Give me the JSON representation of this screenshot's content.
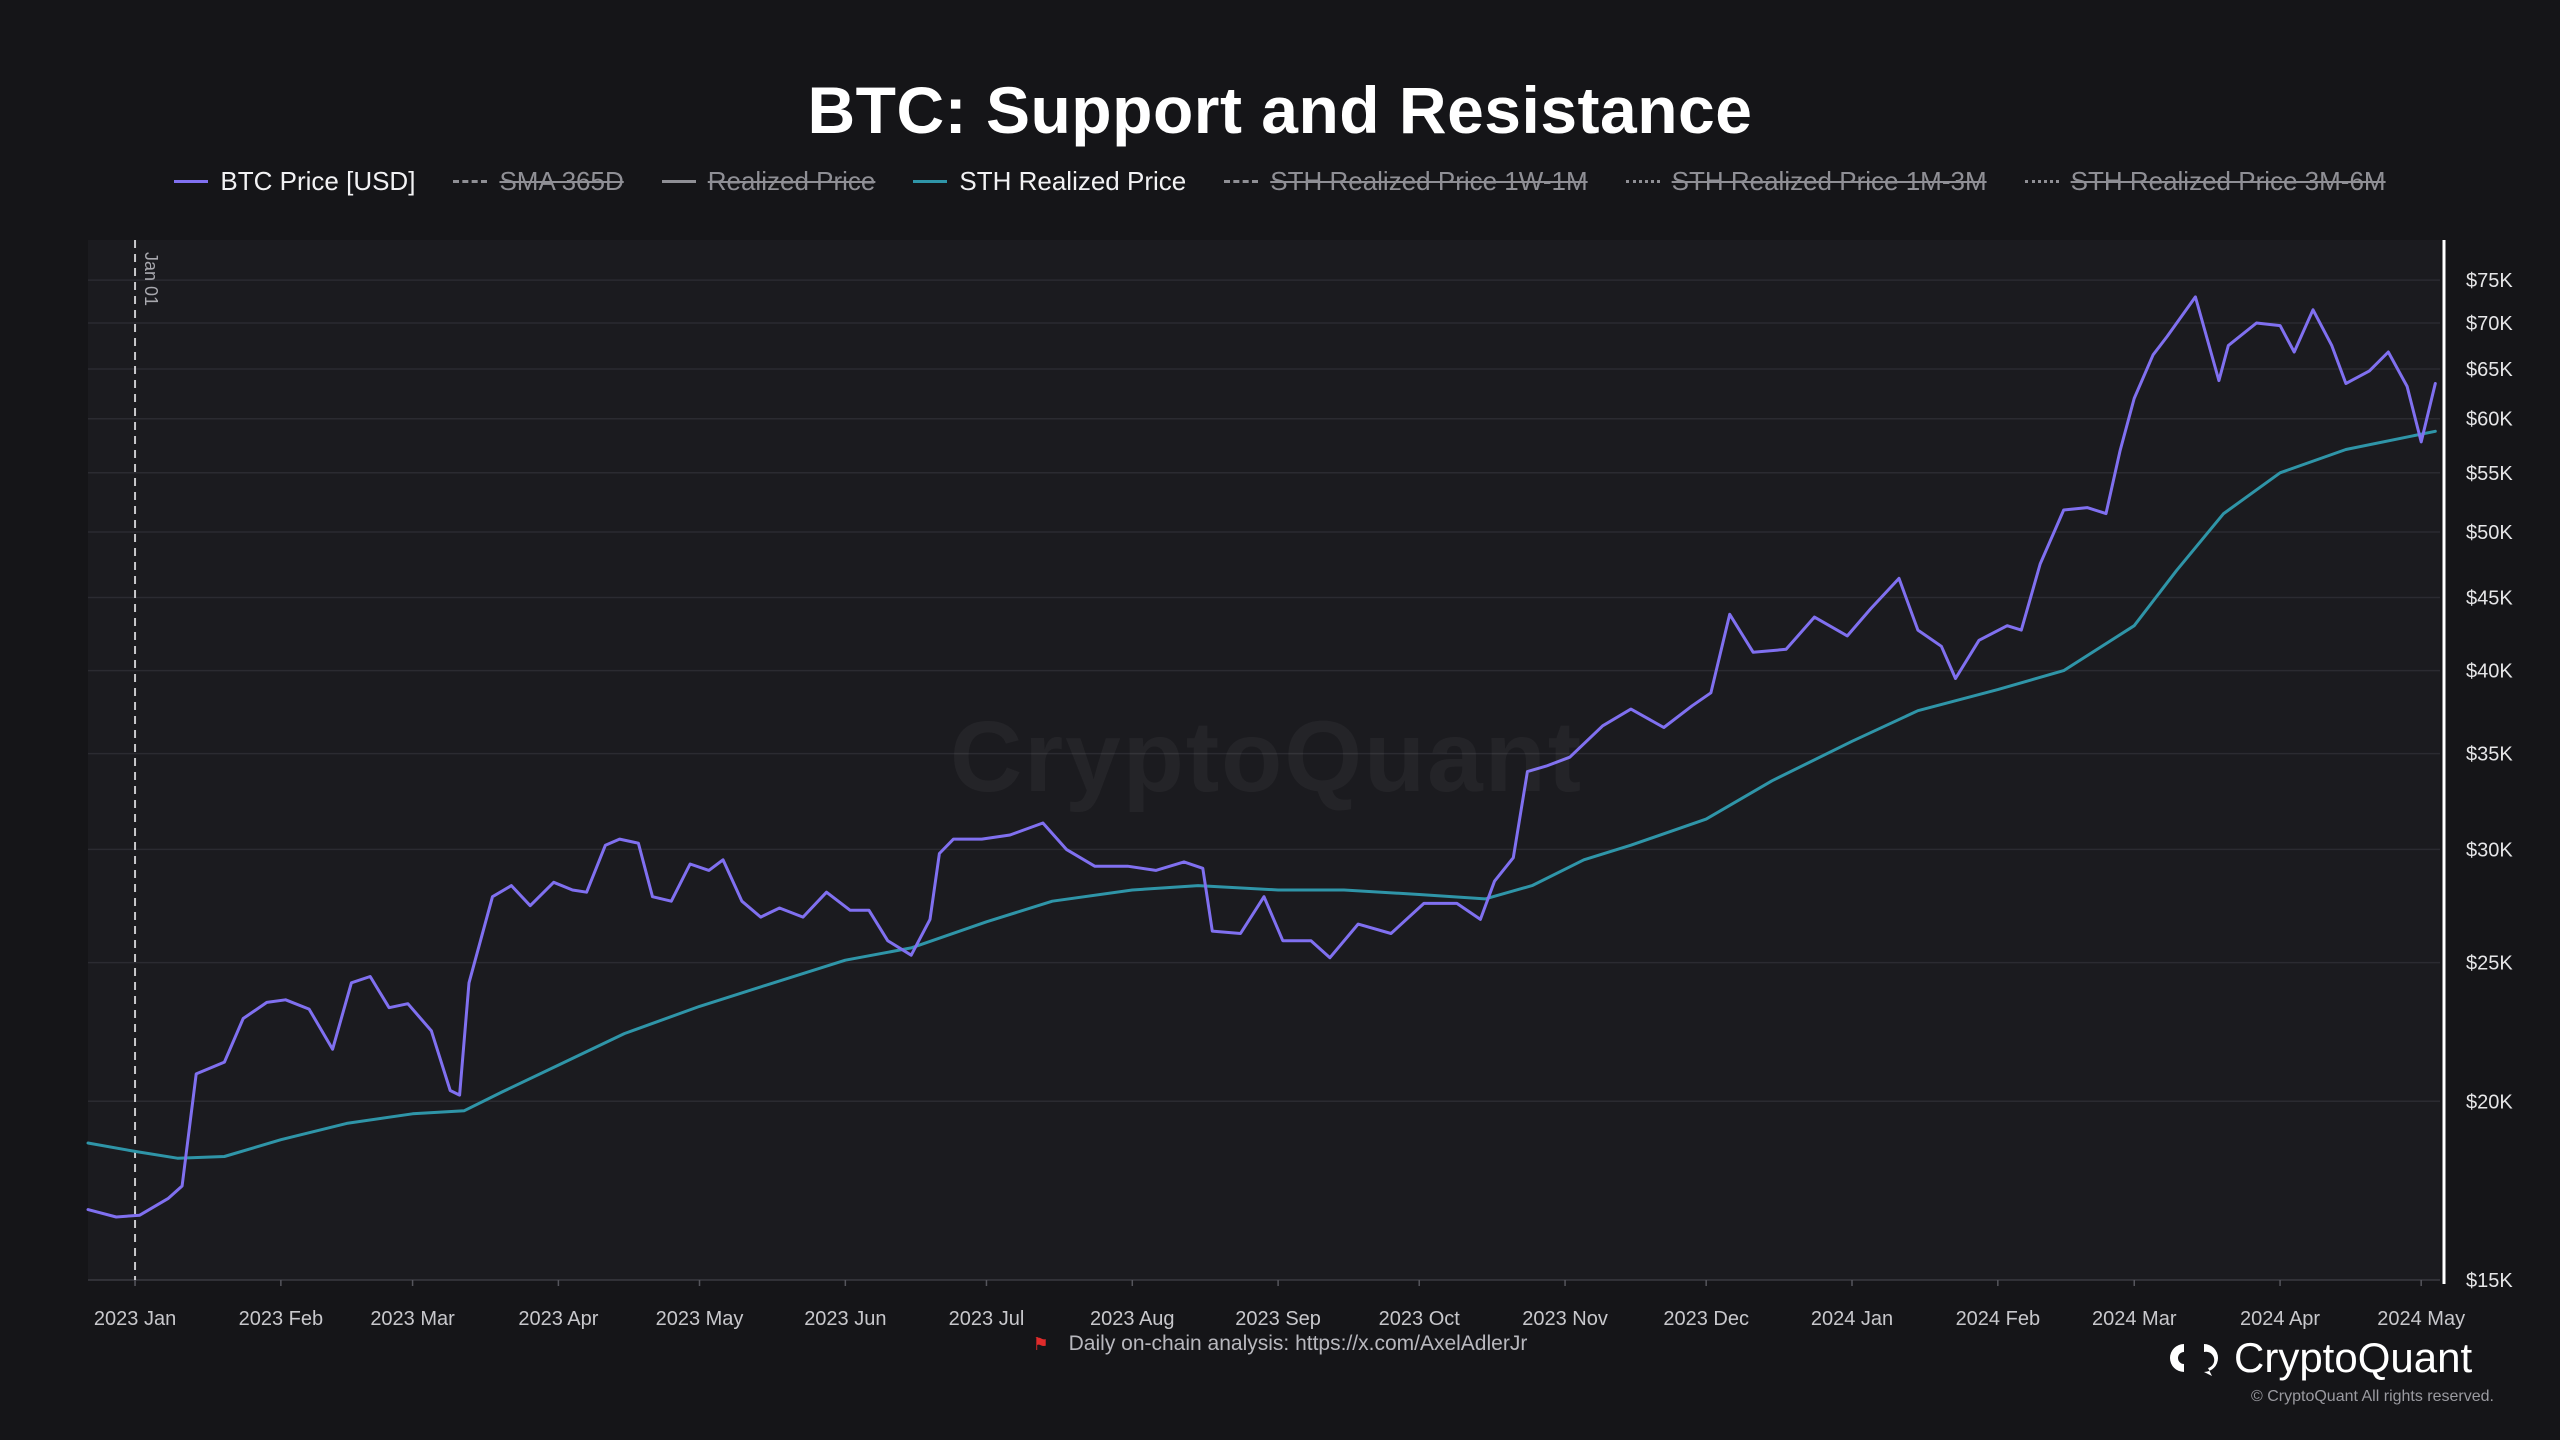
{
  "chart_data": {
    "type": "line",
    "title": "BTC: Support and Resistance",
    "y_scale": "log",
    "ylim": [
      15000,
      80000
    ],
    "y_ticks": [
      {
        "value": 15000,
        "label": "$15K"
      },
      {
        "value": 20000,
        "label": "$20K"
      },
      {
        "value": 25000,
        "label": "$25K"
      },
      {
        "value": 30000,
        "label": "$30K"
      },
      {
        "value": 35000,
        "label": "$35K"
      },
      {
        "value": 40000,
        "label": "$40K"
      },
      {
        "value": 45000,
        "label": "$45K"
      },
      {
        "value": 50000,
        "label": "$50K"
      },
      {
        "value": 55000,
        "label": "$55K"
      },
      {
        "value": 60000,
        "label": "$60K"
      },
      {
        "value": 65000,
        "label": "$65K"
      },
      {
        "value": 70000,
        "label": "$70K"
      },
      {
        "value": 75000,
        "label": "$75K"
      }
    ],
    "x_range": [
      "2022-12-22",
      "2024-05-05"
    ],
    "x_ticks": [
      {
        "date": "2023-01-01",
        "label": "2023 Jan"
      },
      {
        "date": "2023-02-01",
        "label": "2023 Feb"
      },
      {
        "date": "2023-03-01",
        "label": "2023 Mar"
      },
      {
        "date": "2023-04-01",
        "label": "2023 Apr"
      },
      {
        "date": "2023-05-01",
        "label": "2023 May"
      },
      {
        "date": "2023-06-01",
        "label": "2023 Jun"
      },
      {
        "date": "2023-07-01",
        "label": "2023 Jul"
      },
      {
        "date": "2023-08-01",
        "label": "2023 Aug"
      },
      {
        "date": "2023-09-01",
        "label": "2023 Sep"
      },
      {
        "date": "2023-10-01",
        "label": "2023 Oct"
      },
      {
        "date": "2023-11-01",
        "label": "2023 Nov"
      },
      {
        "date": "2023-12-01",
        "label": "2023 Dec"
      },
      {
        "date": "2024-01-01",
        "label": "2024 Jan"
      },
      {
        "date": "2024-02-01",
        "label": "2024 Feb"
      },
      {
        "date": "2024-03-01",
        "label": "2024 Mar"
      },
      {
        "date": "2024-04-01",
        "label": "2024 Apr"
      },
      {
        "date": "2024-05-01",
        "label": "2024 May"
      }
    ],
    "grid": true,
    "legend_position": "top-center",
    "annotation": {
      "date": "2023-01-01",
      "label": "Jan 01",
      "style": "dashed-vertical"
    },
    "legend": [
      {
        "name": "BTC Price [USD]",
        "color": "#8070f0",
        "style": "solid",
        "enabled": true
      },
      {
        "name": "SMA 365D",
        "color": "#8f8f95",
        "style": "dashdot",
        "enabled": false
      },
      {
        "name": "Realized Price",
        "color": "#8f8f95",
        "style": "solid",
        "enabled": false
      },
      {
        "name": "STH Realized Price",
        "color": "#2f95a8",
        "style": "solid",
        "enabled": true
      },
      {
        "name": "STH Realized Price 1W-1M",
        "color": "#8f8f95",
        "style": "dashed",
        "enabled": false
      },
      {
        "name": "STH Realized Price 1M-3M",
        "color": "#8f8f95",
        "style": "dotted",
        "enabled": false
      },
      {
        "name": "STH Realized Price 3M-6M",
        "color": "#8f8f95",
        "style": "dotted",
        "enabled": false
      }
    ],
    "series": [
      {
        "name": "BTC Price [USD]",
        "color": "#8070f0",
        "points": [
          [
            "2022-12-22",
            16800
          ],
          [
            "2022-12-28",
            16600
          ],
          [
            "2023-01-02",
            16650
          ],
          [
            "2023-01-08",
            17100
          ],
          [
            "2023-01-11",
            17450
          ],
          [
            "2023-01-14",
            20900
          ],
          [
            "2023-01-20",
            21300
          ],
          [
            "2023-01-24",
            22850
          ],
          [
            "2023-01-29",
            23450
          ],
          [
            "2023-02-02",
            23550
          ],
          [
            "2023-02-07",
            23200
          ],
          [
            "2023-02-12",
            21750
          ],
          [
            "2023-02-16",
            24200
          ],
          [
            "2023-02-20",
            24450
          ],
          [
            "2023-02-24",
            23250
          ],
          [
            "2023-02-28",
            23400
          ],
          [
            "2023-03-05",
            22400
          ],
          [
            "2023-03-09",
            20350
          ],
          [
            "2023-03-11",
            20200
          ],
          [
            "2023-03-13",
            24200
          ],
          [
            "2023-03-18",
            27800
          ],
          [
            "2023-03-22",
            28300
          ],
          [
            "2023-03-26",
            27400
          ],
          [
            "2023-03-31",
            28450
          ],
          [
            "2023-04-04",
            28100
          ],
          [
            "2023-04-07",
            28000
          ],
          [
            "2023-04-11",
            30200
          ],
          [
            "2023-04-14",
            30500
          ],
          [
            "2023-04-18",
            30300
          ],
          [
            "2023-04-21",
            27800
          ],
          [
            "2023-04-25",
            27600
          ],
          [
            "2023-04-29",
            29300
          ],
          [
            "2023-05-03",
            29000
          ],
          [
            "2023-05-06",
            29500
          ],
          [
            "2023-05-10",
            27600
          ],
          [
            "2023-05-14",
            26900
          ],
          [
            "2023-05-18",
            27300
          ],
          [
            "2023-05-23",
            26900
          ],
          [
            "2023-05-28",
            28000
          ],
          [
            "2023-06-02",
            27200
          ],
          [
            "2023-06-06",
            27200
          ],
          [
            "2023-06-10",
            25900
          ],
          [
            "2023-06-15",
            25300
          ],
          [
            "2023-06-19",
            26800
          ],
          [
            "2023-06-21",
            29800
          ],
          [
            "2023-06-24",
            30500
          ],
          [
            "2023-06-30",
            30500
          ],
          [
            "2023-07-06",
            30700
          ],
          [
            "2023-07-13",
            31300
          ],
          [
            "2023-07-18",
            30000
          ],
          [
            "2023-07-24",
            29200
          ],
          [
            "2023-07-31",
            29200
          ],
          [
            "2023-08-06",
            29000
          ],
          [
            "2023-08-12",
            29400
          ],
          [
            "2023-08-16",
            29100
          ],
          [
            "2023-08-18",
            26300
          ],
          [
            "2023-08-24",
            26200
          ],
          [
            "2023-08-29",
            27800
          ],
          [
            "2023-09-02",
            25900
          ],
          [
            "2023-09-08",
            25900
          ],
          [
            "2023-09-12",
            25200
          ],
          [
            "2023-09-18",
            26600
          ],
          [
            "2023-09-25",
            26200
          ],
          [
            "2023-10-02",
            27500
          ],
          [
            "2023-10-09",
            27500
          ],
          [
            "2023-10-14",
            26800
          ],
          [
            "2023-10-17",
            28500
          ],
          [
            "2023-10-21",
            29600
          ],
          [
            "2023-10-24",
            34000
          ],
          [
            "2023-10-28",
            34300
          ],
          [
            "2023-11-02",
            34800
          ],
          [
            "2023-11-09",
            36600
          ],
          [
            "2023-11-15",
            37600
          ],
          [
            "2023-11-22",
            36500
          ],
          [
            "2023-11-28",
            37800
          ],
          [
            "2023-12-02",
            38600
          ],
          [
            "2023-12-06",
            43800
          ],
          [
            "2023-12-11",
            41200
          ],
          [
            "2023-12-18",
            41400
          ],
          [
            "2023-12-24",
            43600
          ],
          [
            "2023-12-31",
            42300
          ],
          [
            "2024-01-05",
            44200
          ],
          [
            "2024-01-11",
            46400
          ],
          [
            "2024-01-15",
            42700
          ],
          [
            "2024-01-20",
            41600
          ],
          [
            "2024-01-23",
            39500
          ],
          [
            "2024-01-28",
            42000
          ],
          [
            "2024-02-03",
            43000
          ],
          [
            "2024-02-06",
            42700
          ],
          [
            "2024-02-10",
            47500
          ],
          [
            "2024-02-15",
            51800
          ],
          [
            "2024-02-20",
            52000
          ],
          [
            "2024-02-24",
            51500
          ],
          [
            "2024-02-27",
            57000
          ],
          [
            "2024-03-01",
            62000
          ],
          [
            "2024-03-05",
            66500
          ],
          [
            "2024-03-08",
            68500
          ],
          [
            "2024-03-14",
            73000
          ],
          [
            "2024-03-19",
            63800
          ],
          [
            "2024-03-21",
            67500
          ],
          [
            "2024-03-27",
            70000
          ],
          [
            "2024-04-01",
            69700
          ],
          [
            "2024-04-04",
            66800
          ],
          [
            "2024-04-08",
            71500
          ],
          [
            "2024-04-12",
            67500
          ],
          [
            "2024-04-15",
            63500
          ],
          [
            "2024-04-20",
            64800
          ],
          [
            "2024-04-24",
            66800
          ],
          [
            "2024-04-28",
            63200
          ],
          [
            "2024-05-01",
            57800
          ],
          [
            "2024-05-04",
            63500
          ]
        ]
      },
      {
        "name": "STH Realized Price",
        "color": "#2f95a8",
        "points": [
          [
            "2022-12-22",
            18700
          ],
          [
            "2023-01-01",
            18450
          ],
          [
            "2023-01-10",
            18250
          ],
          [
            "2023-01-20",
            18300
          ],
          [
            "2023-02-01",
            18800
          ],
          [
            "2023-02-15",
            19300
          ],
          [
            "2023-03-01",
            19600
          ],
          [
            "2023-03-12",
            19700
          ],
          [
            "2023-03-20",
            20300
          ],
          [
            "2023-04-01",
            21200
          ],
          [
            "2023-04-15",
            22300
          ],
          [
            "2023-05-01",
            23300
          ],
          [
            "2023-05-15",
            24100
          ],
          [
            "2023-06-01",
            25100
          ],
          [
            "2023-06-15",
            25600
          ],
          [
            "2023-07-01",
            26700
          ],
          [
            "2023-07-15",
            27600
          ],
          [
            "2023-08-01",
            28100
          ],
          [
            "2023-08-15",
            28300
          ],
          [
            "2023-09-01",
            28100
          ],
          [
            "2023-09-15",
            28100
          ],
          [
            "2023-10-01",
            27900
          ],
          [
            "2023-10-15",
            27700
          ],
          [
            "2023-10-25",
            28300
          ],
          [
            "2023-11-05",
            29500
          ],
          [
            "2023-11-15",
            30200
          ],
          [
            "2023-12-01",
            31500
          ],
          [
            "2023-12-15",
            33500
          ],
          [
            "2024-01-01",
            35700
          ],
          [
            "2024-01-15",
            37500
          ],
          [
            "2024-02-01",
            38800
          ],
          [
            "2024-02-15",
            40000
          ],
          [
            "2024-03-01",
            43000
          ],
          [
            "2024-03-10",
            47000
          ],
          [
            "2024-03-20",
            51500
          ],
          [
            "2024-04-01",
            55000
          ],
          [
            "2024-04-15",
            57100
          ],
          [
            "2024-05-04",
            58800
          ]
        ]
      }
    ]
  },
  "footer": {
    "flag_icon": "flag-icon",
    "link_text": "Daily on-chain analysis: https://x.com/AxelAdlerJr"
  },
  "brand": {
    "logo_icon": "cryptoquant-logo-icon",
    "name": "CryptoQuant",
    "copyright": "© CryptoQuant All rights reserved."
  },
  "watermark": "CryptoQuant"
}
